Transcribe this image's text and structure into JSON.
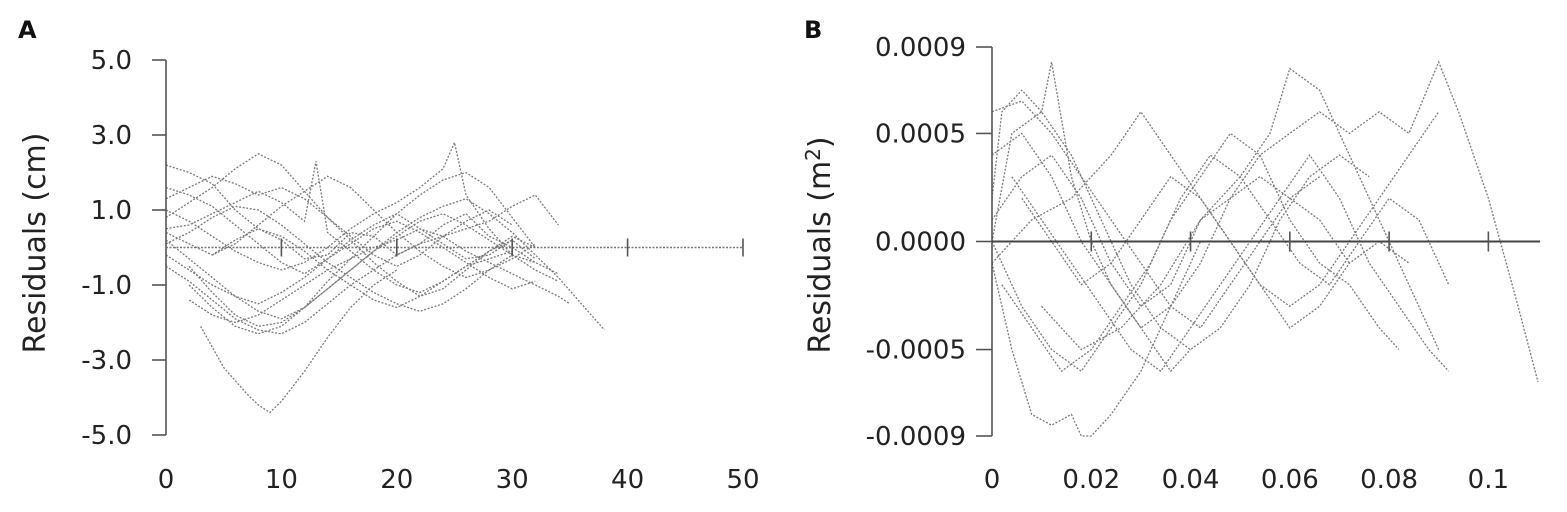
{
  "chart_data": [
    {
      "panel": "A",
      "type": "line",
      "ylabel": "Residuals (cm)",
      "xlabel": "",
      "xlim": [
        0,
        50
      ],
      "ylim": [
        -5.0,
        5.0
      ],
      "x_ticks": [
        "0",
        "10",
        "20",
        "30",
        "40",
        "50"
      ],
      "y_ticks": [
        "5.0",
        "3.0",
        "1.0",
        "-1.0",
        "-3.0",
        "-5.0"
      ],
      "grid": false,
      "series": [
        {
          "x": [
            0,
            2,
            4,
            6,
            8,
            10,
            12,
            14,
            16,
            18,
            20,
            22,
            24,
            26,
            28,
            30,
            32,
            34
          ],
          "y": [
            2.2,
            2.0,
            1.7,
            1.0,
            0.5,
            0.2,
            -0.3,
            -0.2,
            0.4,
            0.3,
            -0.2,
            0.1,
            0.6,
            0.9,
            0.3,
            0.0,
            -0.4,
            -0.7
          ]
        },
        {
          "x": [
            0,
            2,
            4,
            6,
            8,
            10,
            12,
            14,
            16,
            18,
            20,
            22,
            24,
            26,
            28,
            30,
            32
          ],
          "y": [
            1.6,
            1.4,
            1.1,
            0.6,
            0.1,
            -0.4,
            -0.7,
            -0.3,
            0.2,
            0.6,
            0.9,
            0.5,
            0.1,
            -0.3,
            -0.2,
            0.2,
            -0.3
          ]
        },
        {
          "x": [
            2,
            4,
            6,
            8,
            10,
            12,
            14,
            16,
            18,
            20,
            22,
            24,
            26,
            28,
            30,
            32,
            34
          ],
          "y": [
            -0.5,
            -1.2,
            -1.8,
            -2.1,
            -2.0,
            -1.6,
            -1.1,
            -0.6,
            -0.1,
            0.3,
            0.7,
            0.9,
            0.6,
            0.2,
            -0.2,
            -0.6,
            -0.9
          ]
        },
        {
          "x": [
            3,
            5,
            7,
            8,
            9,
            10,
            12,
            14,
            16,
            18,
            20
          ],
          "y": [
            -2.1,
            -3.2,
            -3.9,
            -4.2,
            -4.4,
            -4.1,
            -3.3,
            -2.4,
            -1.6,
            -1.0,
            -0.6
          ]
        },
        {
          "x": [
            0,
            2,
            4,
            6,
            8,
            10,
            12,
            14,
            16,
            18,
            20,
            22,
            24,
            26,
            28,
            30,
            32
          ],
          "y": [
            0.8,
            1.2,
            1.6,
            2.1,
            2.5,
            2.2,
            1.5,
            0.8,
            0.2,
            -0.4,
            -0.9,
            -1.3,
            -1.1,
            -0.6,
            -0.1,
            0.3,
            0.0
          ]
        },
        {
          "x": [
            0,
            2,
            4,
            6,
            8,
            10,
            12,
            14,
            16,
            18,
            20,
            22,
            24,
            26,
            28,
            30,
            32,
            34,
            36,
            38
          ],
          "y": [
            0.2,
            -0.3,
            -0.8,
            -1.3,
            -1.7,
            -1.9,
            -1.6,
            -1.1,
            -0.6,
            -0.1,
            0.4,
            0.8,
            1.1,
            1.3,
            0.9,
            0.4,
            -0.2,
            -0.8,
            -1.5,
            -2.2
          ]
        },
        {
          "x": [
            0,
            2,
            4,
            6,
            8,
            10,
            12,
            13,
            14,
            16,
            18,
            20,
            22,
            24,
            26,
            28,
            30
          ],
          "y": [
            0.5,
            0.6,
            0.9,
            1.2,
            1.5,
            1.2,
            0.7,
            2.3,
            0.4,
            -0.1,
            -0.6,
            -1.0,
            -1.2,
            -0.9,
            -0.5,
            -0.1,
            0.2
          ]
        },
        {
          "x": [
            0,
            2,
            4,
            6,
            8,
            10,
            12,
            14,
            16,
            18,
            20,
            22,
            24,
            26,
            28,
            30,
            32
          ],
          "y": [
            -0.2,
            -0.6,
            -1.0,
            -1.3,
            -1.5,
            -1.2,
            -0.8,
            -0.3,
            0.1,
            0.5,
            0.7,
            0.4,
            0.0,
            -0.4,
            -0.8,
            -1.1,
            -0.9
          ]
        },
        {
          "x": [
            2,
            4,
            6,
            8,
            10,
            12,
            14,
            16,
            18,
            20,
            22,
            24,
            26,
            28,
            30,
            32
          ],
          "y": [
            -1.0,
            -1.6,
            -2.1,
            -2.3,
            -2.1,
            -1.6,
            -0.9,
            -0.3,
            0.3,
            0.9,
            1.4,
            1.8,
            2.0,
            1.6,
            0.8,
            0.0
          ]
        },
        {
          "x": [
            0,
            2,
            4,
            6,
            8,
            10,
            12,
            14,
            16,
            18,
            20,
            22,
            24,
            25,
            26,
            28,
            30
          ],
          "y": [
            1.0,
            0.7,
            0.3,
            -0.1,
            -0.4,
            -0.6,
            -0.4,
            0.0,
            0.5,
            0.9,
            1.2,
            1.6,
            2.1,
            2.8,
            1.4,
            0.5,
            -0.2
          ]
        },
        {
          "x": [
            0,
            2,
            4,
            6,
            8,
            10,
            12,
            14,
            16,
            18,
            20,
            22,
            24,
            26,
            28,
            30,
            32
          ],
          "y": [
            0.1,
            0.4,
            0.8,
            1.1,
            1.0,
            0.6,
            0.1,
            -0.4,
            -0.8,
            -1.2,
            -1.5,
            -1.7,
            -1.5,
            -1.1,
            -0.6,
            -0.2,
            -0.4
          ]
        },
        {
          "x": [
            2,
            4,
            6,
            8,
            10,
            12,
            14,
            16,
            18,
            20,
            22,
            24,
            26,
            28,
            30,
            32,
            34,
            35
          ],
          "y": [
            -1.4,
            -1.8,
            -2.0,
            -1.8,
            -1.4,
            -1.0,
            -0.6,
            -0.3,
            0.0,
            0.2,
            0.5,
            0.3,
            -0.1,
            -0.4,
            -0.7,
            -1.0,
            -1.3,
            -1.5
          ]
        },
        {
          "x": [
            0,
            2,
            4,
            6,
            8,
            10,
            12,
            14,
            16,
            18,
            20,
            22,
            24,
            26,
            28,
            30
          ],
          "y": [
            1.3,
            1.6,
            1.9,
            1.7,
            1.4,
            1.6,
            1.3,
            0.8,
            0.3,
            -0.2,
            -0.5,
            -0.2,
            0.3,
            0.7,
            1.0,
            0.6
          ]
        },
        {
          "x": [
            0,
            2,
            4,
            6,
            8,
            10,
            12,
            14,
            16,
            18,
            20,
            22,
            24,
            26,
            28,
            30,
            32,
            34
          ],
          "y": [
            -0.5,
            -0.9,
            -1.4,
            -1.9,
            -2.2,
            -2.3,
            -2.0,
            -1.5,
            -1.0,
            -0.6,
            -0.2,
            0.1,
            0.3,
            0.5,
            0.7,
            1.1,
            1.4,
            0.6
          ]
        },
        {
          "x": [
            4,
            6,
            8,
            10,
            12,
            14,
            16,
            18,
            20,
            22,
            24,
            26,
            28,
            30
          ],
          "y": [
            -0.2,
            0.2,
            0.5,
            0.3,
            -0.1,
            -0.6,
            -1.0,
            -1.4,
            -1.6,
            -1.3,
            -0.9,
            -0.5,
            -0.3,
            -0.1
          ]
        },
        {
          "x": [
            0,
            2,
            4,
            6,
            8,
            10,
            12,
            14,
            16,
            18,
            20,
            22,
            24,
            26,
            28,
            30,
            32
          ],
          "y": [
            0.4,
            0.1,
            -0.2,
            0.1,
            0.6,
            1.1,
            1.5,
            1.9,
            1.6,
            1.0,
            0.4,
            -0.1,
            -0.5,
            -0.8,
            -0.6,
            -0.3,
            0.1
          ]
        }
      ]
    },
    {
      "panel": "B",
      "type": "line",
      "ylabel": "Residuals (m²)",
      "xlabel": "",
      "xlim": [
        0,
        0.11
      ],
      "ylim": [
        -0.0009,
        0.0009
      ],
      "x_ticks": [
        "0",
        "0.02",
        "0.04",
        "0.06",
        "0.08",
        "0.1"
      ],
      "y_ticks": [
        "0.0009",
        "0.0005",
        "0.0000",
        "-0.0005",
        "-0.0009"
      ],
      "grid": false,
      "series": [
        {
          "x": [
            0,
            0.002,
            0.006,
            0.01,
            0.012,
            0.016,
            0.02,
            0.024,
            0.03,
            0.036,
            0.04
          ],
          "y": [
            0.0002,
            0.0006,
            0.0007,
            0.0006,
            0.00083,
            0.0003,
            0.0,
            -0.0002,
            -0.0004,
            -0.0006,
            -0.0005
          ]
        },
        {
          "x": [
            0,
            0.004,
            0.008,
            0.012,
            0.016,
            0.018,
            0.02,
            0.024,
            0.03,
            0.036,
            0.042
          ],
          "y": [
            -0.0001,
            -0.0005,
            -0.0008,
            -0.00085,
            -0.0008,
            -0.0009,
            -0.0009,
            -0.0008,
            -0.0006,
            -0.0003,
            0.0
          ]
        },
        {
          "x": [
            0,
            0.006,
            0.012,
            0.018,
            0.024,
            0.03,
            0.036,
            0.042,
            0.048,
            0.054,
            0.06,
            0.066,
            0.072,
            0.078,
            0.082
          ],
          "y": [
            0.0,
            -0.0003,
            -0.0005,
            -0.0006,
            -0.0004,
            -0.0002,
            0.0001,
            0.0003,
            0.0005,
            0.0004,
            0.0001,
            -0.0001,
            -0.0002,
            -0.0004,
            -0.0005
          ]
        },
        {
          "x": [
            0.01,
            0.018,
            0.026,
            0.034,
            0.042,
            0.05,
            0.056,
            0.06,
            0.066,
            0.072,
            0.078,
            0.084,
            0.09
          ],
          "y": [
            -0.0003,
            -0.0005,
            -0.0004,
            -0.0002,
            0.0001,
            0.0003,
            0.0005,
            0.0008,
            0.0007,
            0.0004,
            0.0001,
            -0.0002,
            -0.0005
          ]
        },
        {
          "x": [
            0,
            0.006,
            0.012,
            0.018,
            0.024,
            0.03,
            0.036,
            0.042,
            0.048,
            0.054,
            0.06,
            0.066,
            0.072,
            0.078,
            0.084,
            0.09,
            0.094,
            0.1,
            0.106,
            0.11
          ],
          "y": [
            0.0001,
            0.0003,
            0.0004,
            0.0002,
            -0.0001,
            -0.0003,
            -0.0002,
            0.0001,
            0.0002,
            0.0004,
            0.0005,
            0.0006,
            0.0005,
            0.0006,
            0.0005,
            0.00083,
            0.0006,
            0.0002,
            -0.0003,
            -0.00065
          ]
        },
        {
          "x": [
            0,
            0.004,
            0.01,
            0.016,
            0.022,
            0.028,
            0.034,
            0.04,
            0.046,
            0.052,
            0.058,
            0.064,
            0.07,
            0.076
          ],
          "y": [
            0.0,
            0.0005,
            0.0006,
            0.0004,
            0.0001,
            -0.0002,
            -0.0004,
            -0.0005,
            -0.0004,
            -0.0002,
            0.0001,
            0.0003,
            0.0004,
            0.0003
          ]
        },
        {
          "x": [
            0.002,
            0.008,
            0.014,
            0.02,
            0.026,
            0.032,
            0.038,
            0.044,
            0.05,
            0.056,
            0.062,
            0.068,
            0.074,
            0.08,
            0.086,
            0.092
          ],
          "y": [
            -0.0002,
            -0.0004,
            -0.0006,
            -0.0005,
            -0.0003,
            -0.0001,
            0.0002,
            0.0004,
            0.0003,
            0.0001,
            -0.0001,
            -0.0002,
            0.0,
            0.0002,
            0.0001,
            -0.0002
          ]
        },
        {
          "x": [
            0,
            0.006,
            0.012,
            0.018,
            0.024,
            0.03,
            0.036,
            0.042,
            0.048,
            0.054,
            0.06,
            0.066,
            0.072
          ],
          "y": [
            0.0004,
            0.0005,
            0.0003,
            0.0,
            -0.0002,
            -0.0004,
            -0.0003,
            -0.0001,
            0.0002,
            0.0003,
            0.0002,
            0.0001,
            -0.0001
          ]
        },
        {
          "x": [
            0.004,
            0.01,
            0.016,
            0.022,
            0.028,
            0.034,
            0.04,
            0.046,
            0.052,
            0.058,
            0.064,
            0.07,
            0.076,
            0.082,
            0.088,
            0.092
          ],
          "y": [
            0.0003,
            0.0001,
            -0.0001,
            -0.0003,
            -0.0005,
            -0.0006,
            -0.0004,
            -0.0002,
            0.0,
            0.0002,
            0.0004,
            0.0002,
            -0.0001,
            -0.0003,
            -0.0005,
            -0.0006
          ]
        },
        {
          "x": [
            0,
            0.008,
            0.016,
            0.024,
            0.03,
            0.036,
            0.042,
            0.048,
            0.054,
            0.06,
            0.066,
            0.072,
            0.078,
            0.084,
            0.09
          ],
          "y": [
            -0.0001,
            0.0001,
            0.0002,
            0.0004,
            0.0006,
            0.0004,
            0.0002,
            0.0,
            -0.0002,
            -0.0003,
            -0.0002,
            0.0,
            0.0002,
            0.0004,
            0.0006
          ]
        },
        {
          "x": [
            0.006,
            0.012,
            0.018,
            0.024,
            0.03,
            0.036,
            0.042,
            0.048,
            0.054,
            0.06,
            0.066,
            0.072,
            0.078,
            0.084
          ],
          "y": [
            0.0002,
            0.0,
            -0.0002,
            -0.0001,
            0.0001,
            0.0003,
            0.0002,
            0.0,
            -0.0002,
            -0.0004,
            -0.0003,
            -0.0001,
            0.0,
            -0.0001
          ]
        },
        {
          "x": [
            0,
            0.006,
            0.012,
            0.018,
            0.024,
            0.03,
            0.036,
            0.042,
            0.048,
            0.054,
            0.06,
            0.066
          ],
          "y": [
            0.0006,
            0.00065,
            0.0005,
            0.0003,
            0.0001,
            -0.0001,
            -0.0003,
            -0.0004,
            -0.0002,
            0.0,
            0.0002,
            0.0003
          ]
        }
      ]
    }
  ],
  "panels": {
    "a": {
      "letter": "A"
    },
    "b": {
      "letter": "B"
    }
  },
  "colors": {
    "series": "#7a7a7a",
    "axis": "#555555"
  }
}
